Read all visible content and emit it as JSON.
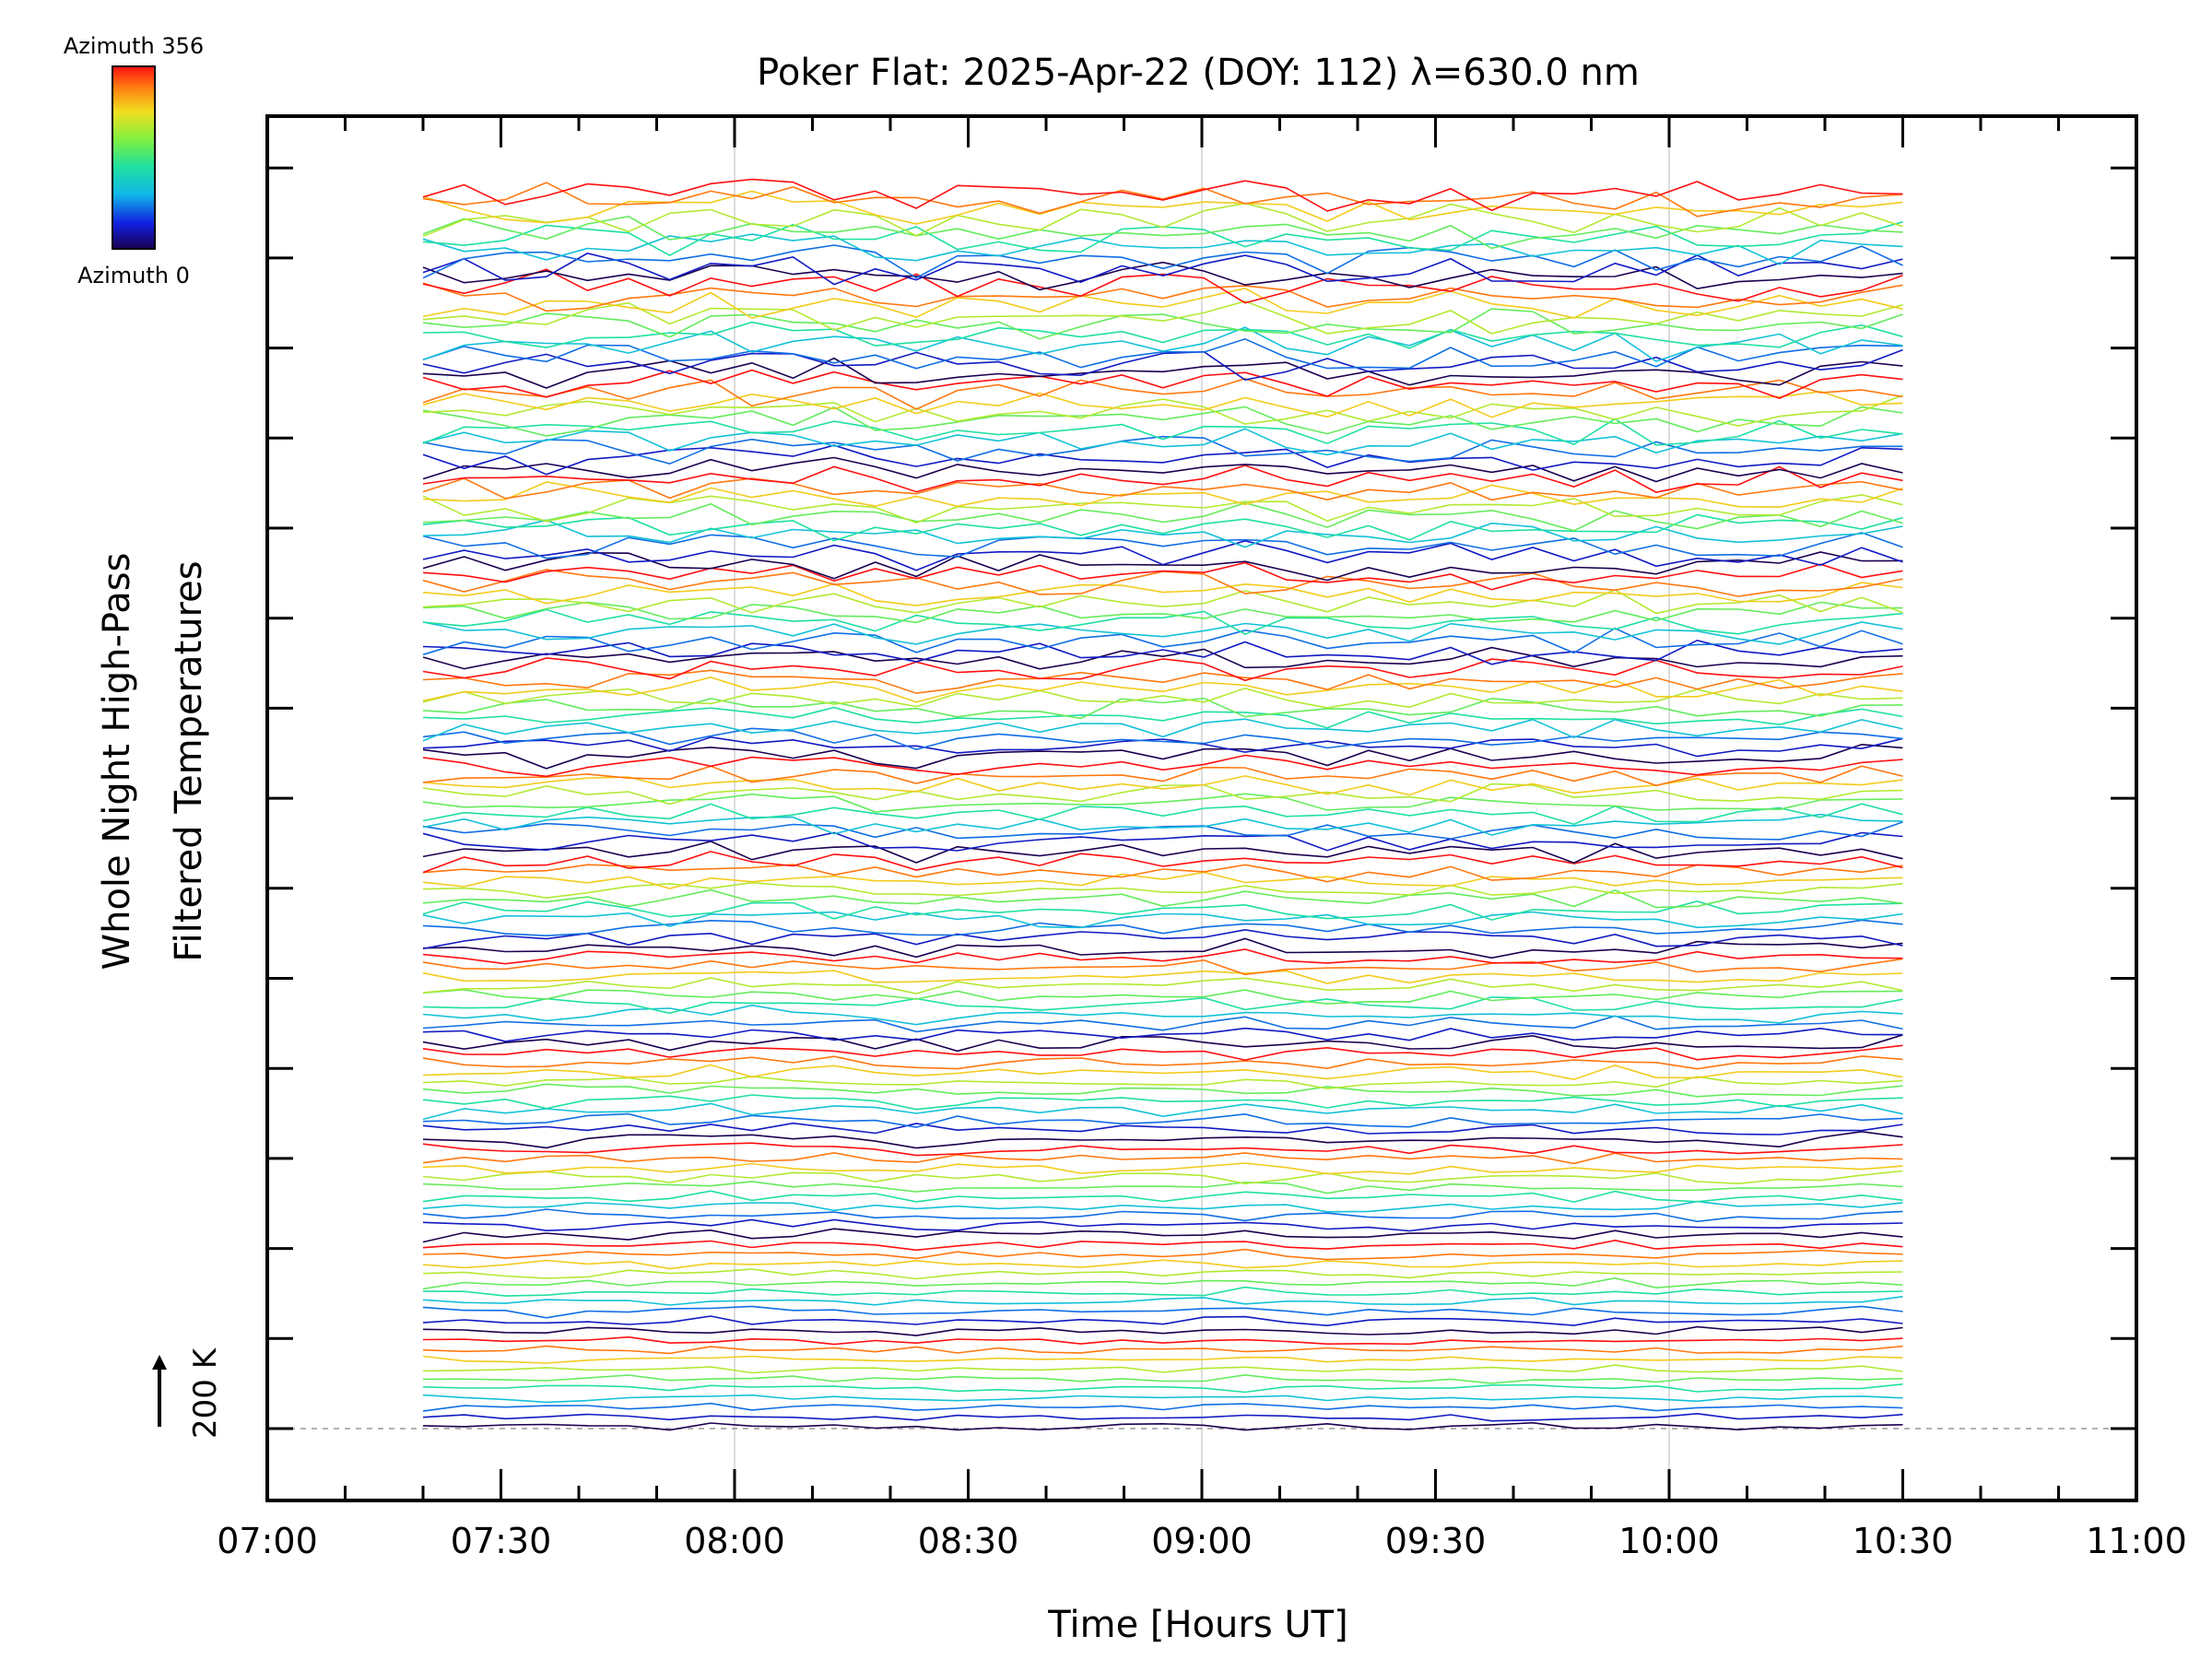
{
  "chart_data": {
    "type": "line",
    "title": "Poker Flat: 2025-Apr-22 (DOY: 112) λ=630.0 nm",
    "xlabel": "Time [Hours UT]",
    "ylabel_line1": "Whole Night High-Pass",
    "ylabel_line2": "Filtered Temperatures",
    "xlim": [
      "07:00",
      "11:00"
    ],
    "x_ticks": [
      "07:00",
      "07:30",
      "08:00",
      "08:30",
      "09:00",
      "09:30",
      "10:00",
      "10:30",
      "11:00"
    ],
    "data_time_range": [
      "07:20",
      "10:30"
    ],
    "scale_bar_label": "200 K",
    "colorbar": {
      "top_label": "Azimuth 356",
      "bottom_label": "Azimuth 0",
      "colormap": "rainbow"
    },
    "series_description": "Stacked offset temperature traces, one per azimuth (0 to 356), colored by azimuth; ~13 groups of ~10 traces each",
    "n_groups": 13,
    "traces_per_group": 10,
    "grid": "vertical lines at each hour",
    "baseline": "dashed"
  },
  "colors": {
    "axis": "#000000",
    "grid": "#d0d0d0",
    "baseline": "#999999"
  }
}
